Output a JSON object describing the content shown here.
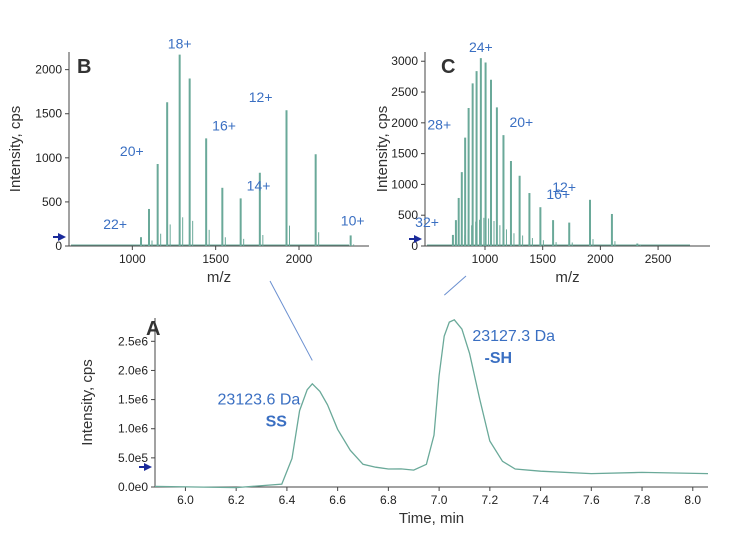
{
  "chart_data": [
    {
      "panel": "B",
      "type": "bar",
      "xlabel": "m/z",
      "ylabel": "Intensity, cps",
      "xlim": [
        620,
        2420
      ],
      "ylim": [
        0,
        2200
      ],
      "xticks": [
        1000,
        1500,
        2000
      ],
      "yticks": [
        0,
        500,
        1000,
        1500,
        2000
      ],
      "x": [
        1052,
        1100,
        1152,
        1209,
        1284,
        1344,
        1443,
        1540,
        1650,
        1765,
        1925,
        2100,
        2310
      ],
      "values": [
        100,
        420,
        930,
        1630,
        2170,
        1900,
        1220,
        660,
        540,
        830,
        1540,
        1040,
        120
      ],
      "annotations": [
        {
          "text": "22+",
          "x": 1052,
          "y": 100
        },
        {
          "text": "20+",
          "x": 1152,
          "y": 930
        },
        {
          "text": "18+",
          "x": 1284,
          "y": 2170
        },
        {
          "text": "16+",
          "x": 1443,
          "y": 1220
        },
        {
          "text": "14+",
          "x": 1650,
          "y": 540
        },
        {
          "text": "12+",
          "x": 1925,
          "y": 1540
        },
        {
          "text": "10+",
          "x": 2310,
          "y": 120
        }
      ]
    },
    {
      "panel": "C",
      "type": "bar",
      "xlabel": "m/z",
      "ylabel": "Intensity, cps",
      "xlim": [
        480,
        2950
      ],
      "ylim": [
        0,
        3150
      ],
      "xticks": [
        1000,
        1500,
        2000,
        2500
      ],
      "yticks": [
        0,
        500,
        1000,
        1500,
        2000,
        2500,
        3000
      ],
      "x": [
        722,
        748,
        772,
        799,
        828,
        858,
        893,
        927,
        964,
        1005,
        1052,
        1103,
        1160,
        1225,
        1300,
        1385,
        1480,
        1590,
        1730,
        1910,
        2100,
        2320
      ],
      "values": [
        180,
        420,
        780,
        1200,
        1760,
        2240,
        2640,
        2840,
        3050,
        2980,
        2700,
        2250,
        1800,
        1380,
        1140,
        860,
        630,
        420,
        380,
        750,
        520,
        40
      ],
      "annotations": [
        {
          "text": "32+",
          "x": 722,
          "y": 180
        },
        {
          "text": "28+",
          "x": 828,
          "y": 1760
        },
        {
          "text": "24+",
          "x": 964,
          "y": 3050
        },
        {
          "text": "20+",
          "x": 1160,
          "y": 1800
        },
        {
          "text": "16+",
          "x": 1480,
          "y": 630
        },
        {
          "text": "12+",
          "x": 1910,
          "y": 750
        }
      ]
    },
    {
      "panel": "A",
      "type": "line",
      "xlabel": "Time, min",
      "ylabel": "Intensity, cps",
      "xlim": [
        5.88,
        8.06
      ],
      "ylim": [
        0,
        2900000.0
      ],
      "xticks": [
        6.0,
        6.2,
        6.4,
        6.6,
        6.8,
        7.0,
        7.2,
        7.4,
        7.6,
        7.8,
        8.0
      ],
      "yticks": [
        0,
        500000,
        1000000,
        1500000,
        2000000,
        2500000
      ],
      "ytick_labels": [
        "0.0e0",
        "5.0e5",
        "1.0e6",
        "1.5e6",
        "2.0e6",
        "2.5e6"
      ],
      "x": [
        5.88,
        6.2,
        6.38,
        6.42,
        6.45,
        6.48,
        6.5,
        6.53,
        6.56,
        6.6,
        6.65,
        6.7,
        6.75,
        6.8,
        6.85,
        6.9,
        6.95,
        6.98,
        7.0,
        7.02,
        7.04,
        7.06,
        7.09,
        7.12,
        7.16,
        7.2,
        7.25,
        7.3,
        7.4,
        7.6,
        7.8,
        8.06
      ],
      "y": [
        0,
        0,
        40000,
        500000,
        1300000,
        1680000,
        1760000,
        1650000,
        1400000,
        1000000,
        620000,
        400000,
        330000,
        320000,
        300000,
        300000,
        380000,
        900000,
        1900000,
        2600000,
        2820000,
        2880000,
        2700000,
        2300000,
        1500000,
        800000,
        430000,
        320000,
        260000,
        240000,
        240000,
        240000
      ],
      "annotations": [
        {
          "lines": [
            "23123.6 Da",
            "SS"
          ],
          "x": 6.5,
          "y": 1760000
        },
        {
          "lines": [
            "23127.3 Da",
            "-SH"
          ],
          "x": 7.06,
          "y": 2880000
        }
      ]
    }
  ]
}
